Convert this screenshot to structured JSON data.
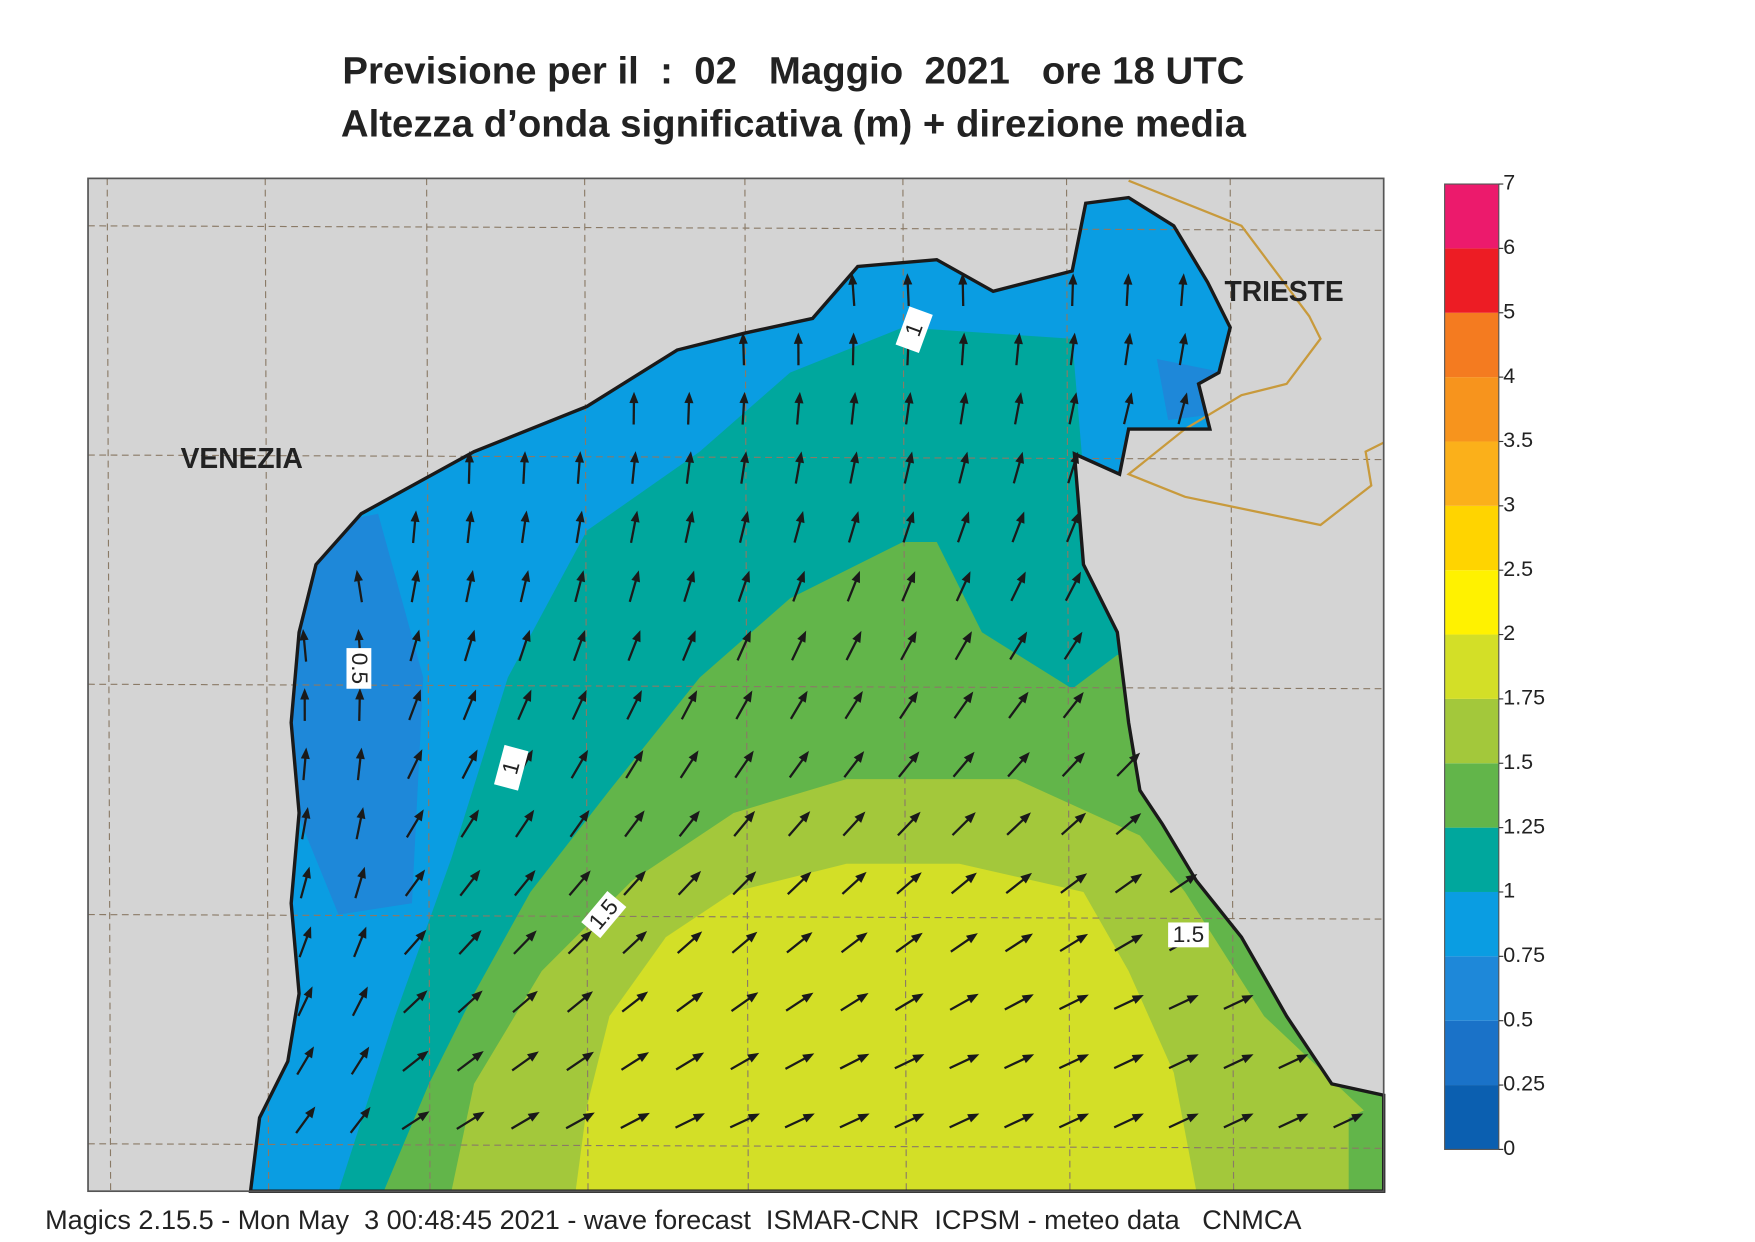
{
  "title": {
    "line1": "Previsione per il  :  02   Maggio  2021   ore 18 UTC",
    "line2": "Altezza d’onda significativa (m) + direzione media"
  },
  "map": {
    "places": [
      "VENEZIA",
      "TRIESTE"
    ],
    "contour_labels": [
      "1",
      "0.5",
      "1",
      "1.5",
      "1.5"
    ]
  },
  "legend": {
    "ticks": [
      0,
      0.25,
      0.5,
      0.75,
      1,
      1.25,
      1.5,
      1.75,
      2,
      2.5,
      3,
      3.5,
      4,
      5,
      6,
      7
    ],
    "colors": [
      "#0b5fb0",
      "#1a72c8",
      "#1e88d9",
      "#0a9de2",
      "#00a79d",
      "#62b54a",
      "#a3c83b",
      "#d3df27",
      "#fff200",
      "#ffd400",
      "#fbb01a",
      "#f7941d",
      "#f47b20",
      "#ed1c24",
      "#ec1a6c"
    ]
  },
  "footer": "Magics 2.15.5 - Mon May  3 00:48:45 2021 - wave forecast  ISMAR-CNR  ICPSM - meteo data   CNMCA"
}
